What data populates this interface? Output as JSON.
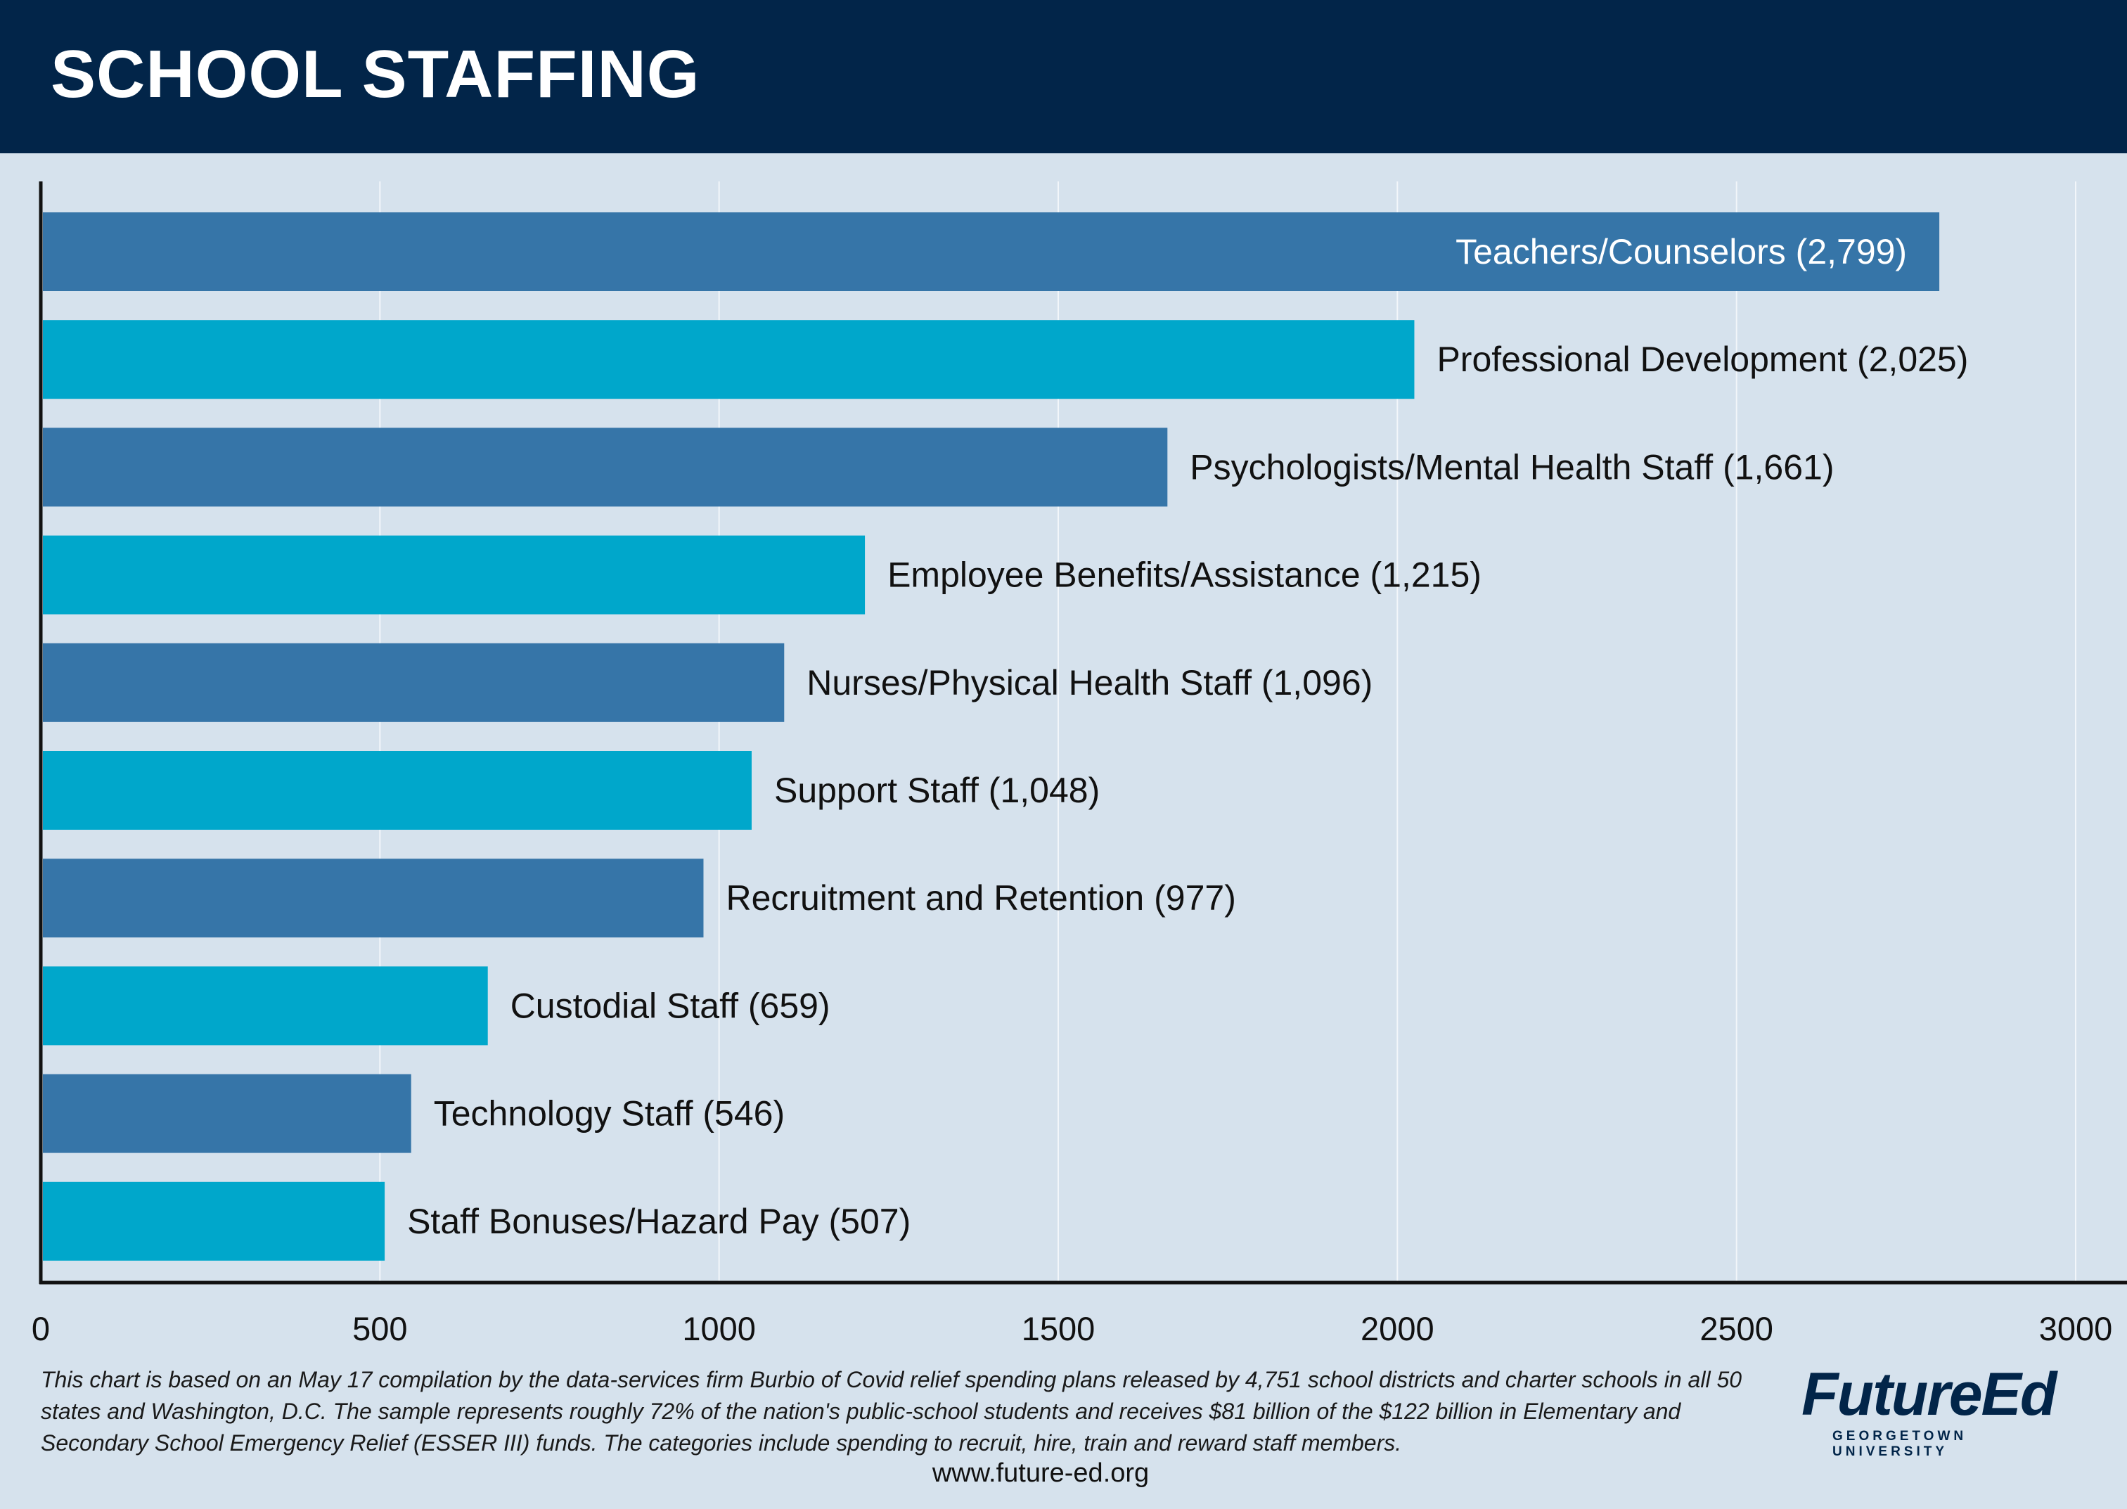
{
  "header": {
    "title": "SCHOOL STAFFING"
  },
  "colors": {
    "header_bg": "#022549",
    "bar_dark": "#3675a8",
    "bar_light": "#00a7cb",
    "background": "#d6e2ed"
  },
  "chart_data": {
    "type": "bar",
    "orientation": "horizontal",
    "categories": [
      "Teachers/Counselors",
      "Professional Development",
      "Psychologists/Mental Health Staff",
      "Employee Benefits/Assistance",
      "Nurses/Physical Health Staff",
      "Support Staff",
      "Recruitment and Retention",
      "Custodial Staff",
      "Technology Staff",
      "Staff Bonuses/Hazard Pay"
    ],
    "values": [
      2799,
      2025,
      1661,
      1215,
      1096,
      1048,
      977,
      659,
      546,
      507
    ],
    "data_labels": [
      "Teachers/Counselors (2,799)",
      "Professional Development (2,025)",
      "Psychologists/Mental Health Staff (1,661)",
      "Employee Benefits/Assistance (1,215)",
      "Nurses/Physical Health Staff (1,096)",
      "Support Staff (1,048)",
      "Recruitment and Retention (977)",
      "Custodial Staff (659)",
      "Technology Staff (546)",
      "Staff Bonuses/Hazard Pay (507)"
    ],
    "xlim": [
      0,
      3000
    ],
    "xticks": [
      0,
      500,
      1000,
      1500,
      2000,
      2500,
      3000
    ],
    "xtick_labels": [
      "0",
      "500",
      "1000",
      "1500",
      "2000",
      "2500",
      "3000"
    ],
    "grid": true,
    "legend": "none",
    "title": "SCHOOL STAFFING"
  },
  "footer": {
    "note": "This chart is based on an May 17 compilation by the data-services firm Burbio of Covid relief spending plans released by 4,751 school districts and charter schools in all 50 states and Washington, D.C. The sample represents roughly 72% of the nation's public-school students and receives $81 billion of the $122 billion in Elementary and Secondary School Emergency Relief (ESSER III) funds. The categories include spending to recruit, hire, train and reward staff members.",
    "url": "www.future-ed.org",
    "logo_main": "FutureEd",
    "logo_sub": "GEORGETOWN UNIVERSITY"
  }
}
